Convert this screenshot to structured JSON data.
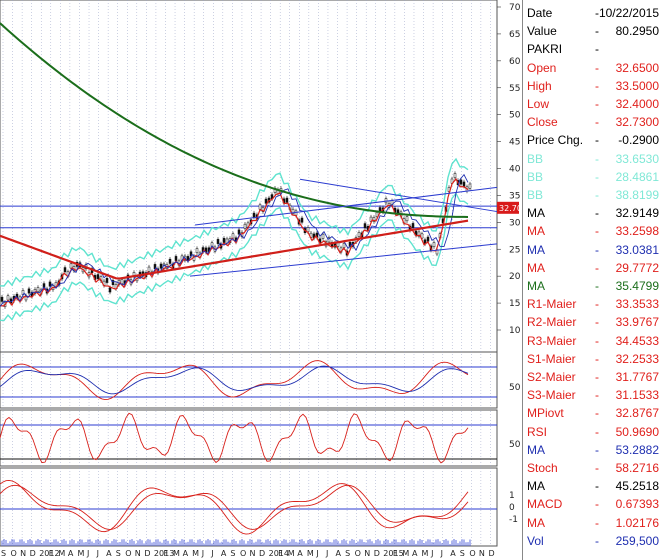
{
  "y_axis_labels": [
    "70",
    "65",
    "60",
    "55",
    "50",
    "45",
    "40",
    "35",
    "30",
    "25",
    "20",
    "15",
    "10"
  ],
  "osc_labels": {
    "p1": "50",
    "p2": "50",
    "p3_top": "1",
    "p3_mid": "0",
    "p3_bot": "-1"
  },
  "price_tag": "32.70",
  "time_axis": {
    "months": [
      "S",
      "O",
      "N",
      "D",
      "2012",
      "F",
      "M",
      "A",
      "M",
      "J",
      "J",
      "A",
      "S",
      "O",
      "N",
      "D",
      "2013",
      "F",
      "M",
      "A",
      "M",
      "J",
      "J",
      "A",
      "S",
      "O",
      "N",
      "D",
      "2014",
      "F",
      "M",
      "A",
      "M",
      "J",
      "J",
      "A",
      "S",
      "O",
      "N",
      "D",
      "2015",
      "F",
      "M",
      "A",
      "M",
      "J",
      "J",
      "A",
      "S",
      "O",
      "N",
      "D"
    ]
  },
  "info_panel": [
    {
      "label": "Date",
      "value": "10/22/2015",
      "color": "#000000"
    },
    {
      "label": "Value",
      "value": "80.2950",
      "color": "#000000"
    },
    {
      "label": "PAKRI",
      "value": "",
      "color": "#000000"
    },
    {
      "label": "Open",
      "value": "32.6500",
      "color": "#e0201c"
    },
    {
      "label": "High",
      "value": "33.5000",
      "color": "#e0201c"
    },
    {
      "label": "Low",
      "value": "32.4000",
      "color": "#e0201c"
    },
    {
      "label": "Close",
      "value": "32.7300",
      "color": "#e0201c"
    },
    {
      "label": "Price Chg.",
      "value": "-0.2900",
      "color": "#000000"
    },
    {
      "label": "BB",
      "value": "33.6530",
      "color": "#7fe8d6"
    },
    {
      "label": "BB",
      "value": "28.4861",
      "color": "#7fe8d6"
    },
    {
      "label": "BB",
      "value": "38.8199",
      "color": "#7fe8d6"
    },
    {
      "label": "MA",
      "value": "32.9149",
      "color": "#000000"
    },
    {
      "label": "MA",
      "value": "33.2598",
      "color": "#e0201c"
    },
    {
      "label": "MA",
      "value": "33.0381",
      "color": "#1f2fb0"
    },
    {
      "label": "MA",
      "value": "29.7772",
      "color": "#e0201c"
    },
    {
      "label": "MA",
      "value": "35.4799",
      "color": "#1b6e1b"
    },
    {
      "label": "R1-Maier",
      "value": "33.3533",
      "color": "#e0201c"
    },
    {
      "label": "R2-Maier",
      "value": "33.9767",
      "color": "#e0201c"
    },
    {
      "label": "R3-Maier",
      "value": "34.4533",
      "color": "#e0201c"
    },
    {
      "label": "S1-Maier",
      "value": "32.2533",
      "color": "#e0201c"
    },
    {
      "label": "S2-Maier",
      "value": "31.7767",
      "color": "#e0201c"
    },
    {
      "label": "S3-Maier",
      "value": "31.1533",
      "color": "#e0201c"
    },
    {
      "label": "MPiovt",
      "value": "32.8767",
      "color": "#e0201c"
    },
    {
      "label": "RSI",
      "value": "50.9690",
      "color": "#e0201c"
    },
    {
      "label": "MA",
      "value": "53.2882",
      "color": "#1f2fb0"
    },
    {
      "label": "Stoch",
      "value": "58.2716",
      "color": "#e0201c"
    },
    {
      "label": "MA",
      "value": "45.2518",
      "color": "#000000"
    },
    {
      "label": "MACD",
      "value": "0.67393",
      "color": "#e0201c"
    },
    {
      "label": "MA",
      "value": "1.02176",
      "color": "#e0201c"
    },
    {
      "label": "Vol",
      "value": "259,500",
      "color": "#1f2fb0"
    }
  ]
}
